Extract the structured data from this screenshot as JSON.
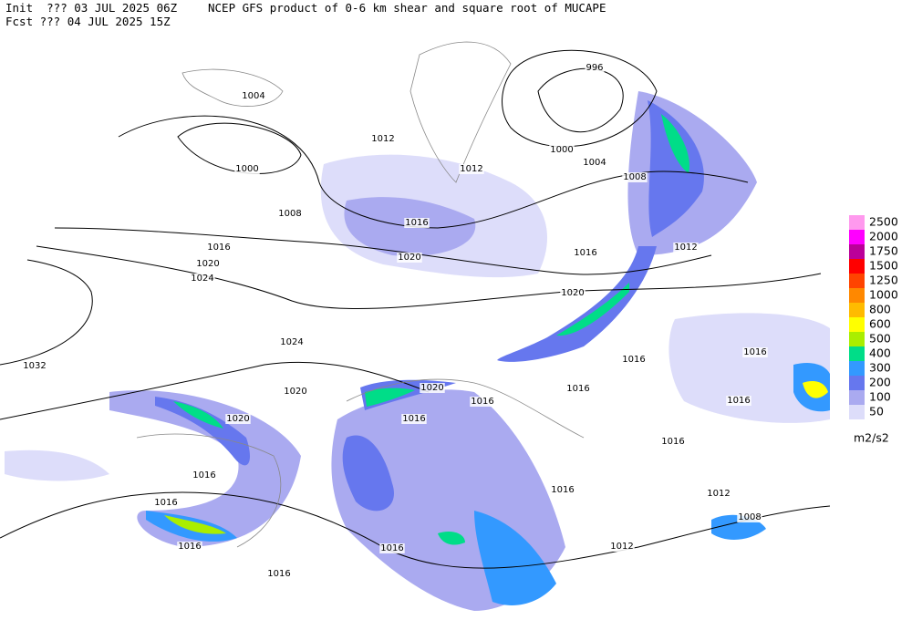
{
  "header": {
    "init": "Init  ??? 03 JUL 2025 06Z",
    "title": "NCEP GFS product of 0-6 km shear and square root of MUCAPE",
    "forecast": "Fcst ??? 04 JUL 2025 15Z"
  },
  "legend": {
    "levels": [
      {
        "label": 2500,
        "color": "#ff99ee"
      },
      {
        "label": 2000,
        "color": "#ff00ff"
      },
      {
        "label": 1750,
        "color": "#bb0099"
      },
      {
        "label": 1500,
        "color": "#ff0000"
      },
      {
        "label": 1250,
        "color": "#ff4400"
      },
      {
        "label": 1000,
        "color": "#ff8800"
      },
      {
        "label": 800,
        "color": "#ffbb00"
      },
      {
        "label": 600,
        "color": "#ffff00"
      },
      {
        "label": 500,
        "color": "#aaee00"
      },
      {
        "label": 400,
        "color": "#00dd88"
      },
      {
        "label": 300,
        "color": "#3399ff"
      },
      {
        "label": 200,
        "color": "#6677ee"
      },
      {
        "label": 100,
        "color": "#aaaaf0"
      },
      {
        "label": 50,
        "color": "#ddddfa"
      }
    ],
    "unit": "m2/s2"
  },
  "isobar_labels": [
    "996",
    "1004",
    "1012",
    "1000",
    "1012",
    "1000",
    "1004",
    "1008",
    "1008",
    "1016",
    "1016",
    "1020",
    "1016",
    "1012",
    "1020",
    "1024",
    "1020",
    "1024",
    "1032",
    "1016",
    "1016",
    "1016",
    "1020",
    "1020",
    "1016",
    "1016",
    "1020",
    "1016",
    "1016",
    "1016",
    "1016",
    "1016",
    "1012",
    "1008",
    "1016",
    "1016",
    "1012",
    "1016"
  ]
}
